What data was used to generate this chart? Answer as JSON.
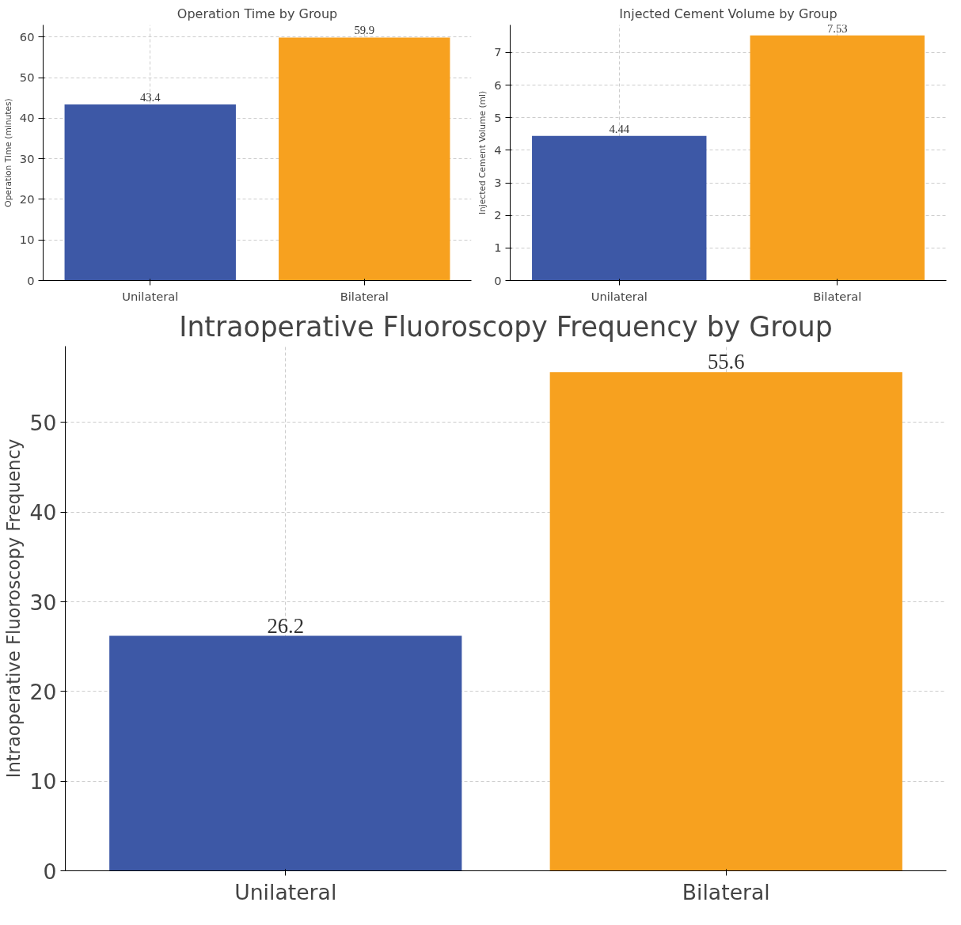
{
  "chart_data": [
    {
      "type": "bar",
      "title": "Operation Time by Group",
      "ylabel": "Operation Time (minutes)",
      "categories": [
        "Unilateral",
        "Bilateral"
      ],
      "values": [
        43.4,
        59.9
      ],
      "colors": [
        "#3d58a6",
        "#f7a11f"
      ],
      "ylim": [
        0,
        63
      ],
      "yticks": [
        0,
        10,
        20,
        30,
        40,
        50,
        60
      ],
      "grid": true,
      "data_labels": true
    },
    {
      "type": "bar",
      "title": "Injected Cement Volume by Group",
      "ylabel": "Injected Cement Volume (ml)",
      "categories": [
        "Unilateral",
        "Bilateral"
      ],
      "values": [
        4.44,
        7.53
      ],
      "colors": [
        "#3d58a6",
        "#f7a11f"
      ],
      "ylim": [
        0,
        7.85
      ],
      "yticks": [
        0,
        1,
        2,
        3,
        4,
        5,
        6,
        7
      ],
      "grid": true,
      "data_labels": true
    },
    {
      "type": "bar",
      "title": "Intraoperative Fluoroscopy Frequency by Group",
      "ylabel": "Intraoperative Fluoroscopy Frequency",
      "categories": [
        "Unilateral",
        "Bilateral"
      ],
      "values": [
        26.2,
        55.6
      ],
      "colors": [
        "#3d58a6",
        "#f7a11f"
      ],
      "ylim": [
        0,
        58.5
      ],
      "yticks": [
        0,
        10,
        20,
        30,
        40,
        50
      ],
      "grid": true,
      "data_labels": true
    }
  ]
}
